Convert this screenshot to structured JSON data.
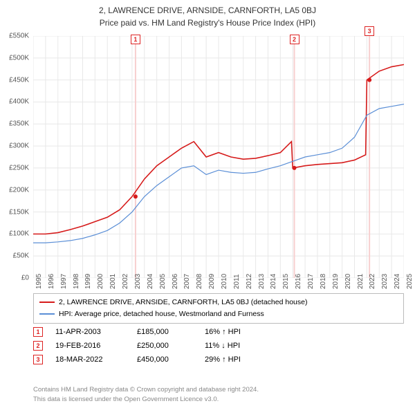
{
  "title_line1": "2, LAWRENCE DRIVE, ARNSIDE, CARNFORTH, LA5 0BJ",
  "title_line2": "Price paid vs. HM Land Registry's House Price Index (HPI)",
  "chart": {
    "type": "line",
    "background_color": "#ffffff",
    "grid_color": "#e8e8e8",
    "x_axis": {
      "min": 1995,
      "max": 2025,
      "tick_step": 1
    },
    "y_axis": {
      "min": 0,
      "max": 550000,
      "tick_step": 50000,
      "tick_prefix": "£",
      "tick_suffix": "K"
    },
    "series": [
      {
        "name": "2, LAWRENCE DRIVE, ARNSIDE, CARNFORTH, LA5 0BJ (detached house)",
        "color": "#d61a1a",
        "line_width": 1.6,
        "data": [
          [
            1995,
            100000
          ],
          [
            1996,
            100000
          ],
          [
            1997,
            103000
          ],
          [
            1998,
            110000
          ],
          [
            1999,
            118000
          ],
          [
            2000,
            128000
          ],
          [
            2001,
            138000
          ],
          [
            2002,
            155000
          ],
          [
            2003,
            185000
          ],
          [
            2004,
            225000
          ],
          [
            2005,
            255000
          ],
          [
            2006,
            275000
          ],
          [
            2007,
            295000
          ],
          [
            2008,
            310000
          ],
          [
            2009,
            275000
          ],
          [
            2010,
            285000
          ],
          [
            2011,
            275000
          ],
          [
            2012,
            270000
          ],
          [
            2013,
            272000
          ],
          [
            2014,
            278000
          ],
          [
            2015,
            285000
          ],
          [
            2015.9,
            310000
          ],
          [
            2016,
            250000
          ],
          [
            2017,
            255000
          ],
          [
            2018,
            258000
          ],
          [
            2019,
            260000
          ],
          [
            2020,
            262000
          ],
          [
            2021,
            268000
          ],
          [
            2021.9,
            280000
          ],
          [
            2022,
            450000
          ],
          [
            2023,
            470000
          ],
          [
            2024,
            480000
          ],
          [
            2025,
            485000
          ]
        ]
      },
      {
        "name": "HPI: Average price, detached house, Westmorland and Furness",
        "color": "#5a8ed6",
        "line_width": 1.2,
        "data": [
          [
            1995,
            80000
          ],
          [
            1996,
            80000
          ],
          [
            1997,
            82000
          ],
          [
            1998,
            85000
          ],
          [
            1999,
            90000
          ],
          [
            2000,
            98000
          ],
          [
            2001,
            108000
          ],
          [
            2002,
            125000
          ],
          [
            2003,
            150000
          ],
          [
            2004,
            185000
          ],
          [
            2005,
            210000
          ],
          [
            2006,
            230000
          ],
          [
            2007,
            250000
          ],
          [
            2008,
            255000
          ],
          [
            2009,
            235000
          ],
          [
            2010,
            245000
          ],
          [
            2011,
            240000
          ],
          [
            2012,
            238000
          ],
          [
            2013,
            240000
          ],
          [
            2014,
            248000
          ],
          [
            2015,
            255000
          ],
          [
            2016,
            265000
          ],
          [
            2017,
            275000
          ],
          [
            2018,
            280000
          ],
          [
            2019,
            285000
          ],
          [
            2020,
            295000
          ],
          [
            2021,
            320000
          ],
          [
            2022,
            370000
          ],
          [
            2023,
            385000
          ],
          [
            2024,
            390000
          ],
          [
            2025,
            395000
          ]
        ]
      }
    ],
    "sale_markers": [
      {
        "label": "1",
        "x": 2003.28,
        "y": 185000,
        "box_y": 50
      },
      {
        "label": "2",
        "x": 2016.13,
        "y": 250000,
        "box_y": 50
      },
      {
        "label": "3",
        "x": 2022.21,
        "y": 450000,
        "box_y": 38
      }
    ],
    "marker_line_color": "#f7cfcf",
    "marker_dot_color": "#d61a1a",
    "marker_box_border": "#d61a1a"
  },
  "legend": {
    "items": [
      {
        "color": "#d61a1a",
        "label": "2, LAWRENCE DRIVE, ARNSIDE, CARNFORTH, LA5 0BJ (detached house)"
      },
      {
        "color": "#5a8ed6",
        "label": "HPI: Average price, detached house, Westmorland and Furness"
      }
    ]
  },
  "sales": [
    {
      "marker": "1",
      "date": "11-APR-2003",
      "price": "£185,000",
      "diff": "16% ↑ HPI"
    },
    {
      "marker": "2",
      "date": "19-FEB-2016",
      "price": "£250,000",
      "diff": "11% ↓ HPI"
    },
    {
      "marker": "3",
      "date": "18-MAR-2022",
      "price": "£450,000",
      "diff": "29% ↑ HPI"
    }
  ],
  "footer_line1": "Contains HM Land Registry data © Crown copyright and database right 2024.",
  "footer_line2": "This data is licensed under the Open Government Licence v3.0."
}
